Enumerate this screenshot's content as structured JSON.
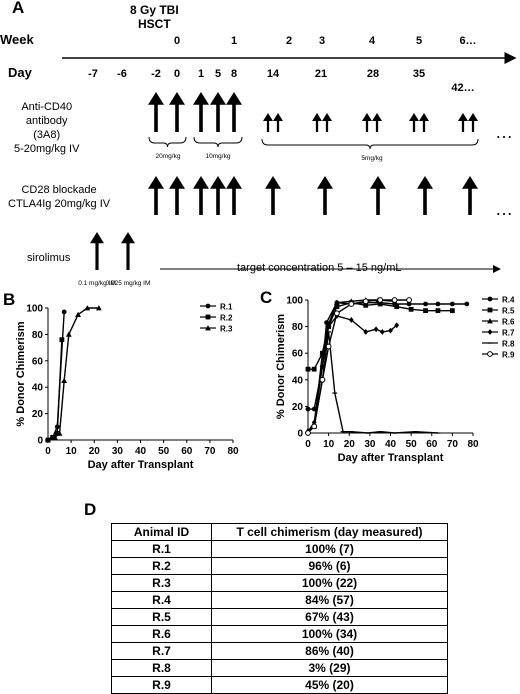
{
  "panel_a": {
    "letter": "A",
    "hsct_label": "8 Gy TBI\nHSCT",
    "week_label": "Week",
    "day_label": "Day",
    "weeks": [
      "0",
      "1",
      "2",
      "3",
      "4",
      "5",
      "6…"
    ],
    "days": [
      "-7",
      "-6",
      "-2",
      "0",
      "1",
      "5",
      "8",
      "14",
      "21",
      "28",
      "35",
      "42…"
    ],
    "anti_cd40": {
      "label": "Anti-CD40\nantibody\n(3A8)\n5-20mg/kg IV",
      "dose_loading": "20mg/kg",
      "dose_week1": "10mg/kg",
      "dose_maintenance": "5mg/kg"
    },
    "cd28": {
      "label": "CD28 blockade\nCTLA4Ig 20mg/kg IV"
    },
    "sirolimus": {
      "label": "sirolimus",
      "dose_1": "0.1 mg/kg IM",
      "dose_2": "0.025 mg/kg IM",
      "target": "target concentration 5 – 15 ng/mL"
    },
    "ellipsis": "…"
  },
  "chart_data": [
    {
      "panel": "B",
      "type": "line",
      "xlabel": "Day after Transplant",
      "ylabel": "% Donor Chimerism",
      "xlim": [
        0,
        80
      ],
      "ylim": [
        0,
        100
      ],
      "xticks": [
        0,
        10,
        20,
        30,
        40,
        50,
        60,
        70,
        80
      ],
      "yticks": [
        0,
        20,
        40,
        60,
        80,
        100
      ],
      "series": [
        {
          "name": "R.1",
          "marker": "circle",
          "points": [
            [
              0,
              0
            ],
            [
              2,
              2
            ],
            [
              4,
              10
            ],
            [
              7,
              97
            ]
          ]
        },
        {
          "name": "R.2",
          "marker": "square",
          "points": [
            [
              0,
              0
            ],
            [
              2,
              2
            ],
            [
              4,
              5
            ],
            [
              6,
              76
            ]
          ]
        },
        {
          "name": "R.3",
          "marker": "triangle",
          "points": [
            [
              0,
              0
            ],
            [
              3,
              2
            ],
            [
              5,
              5
            ],
            [
              7,
              45
            ],
            [
              9,
              80
            ],
            [
              13,
              95
            ],
            [
              17,
              100
            ],
            [
              22,
              100
            ]
          ]
        }
      ]
    },
    {
      "panel": "C",
      "type": "line",
      "xlabel": "Day after Transplant",
      "ylabel": "% Donor Chimerism",
      "xlim": [
        0,
        80
      ],
      "ylim": [
        0,
        100
      ],
      "xticks": [
        0,
        10,
        20,
        30,
        40,
        50,
        60,
        70,
        80
      ],
      "yticks": [
        0,
        20,
        40,
        60,
        80,
        100
      ],
      "series": [
        {
          "name": "R.4",
          "marker": "circle",
          "points": [
            [
              0,
              18
            ],
            [
              3,
              18
            ],
            [
              7,
              50
            ],
            [
              9,
              83
            ],
            [
              14,
              98
            ],
            [
              21,
              97
            ],
            [
              28,
              98
            ],
            [
              35,
              98
            ],
            [
              42,
              97
            ],
            [
              49,
              97
            ],
            [
              57,
              97
            ],
            [
              63,
              97
            ],
            [
              70,
              97
            ],
            [
              77,
              97
            ]
          ]
        },
        {
          "name": "R.5",
          "marker": "square",
          "points": [
            [
              0,
              48
            ],
            [
              3,
              48
            ],
            [
              7,
              60
            ],
            [
              10,
              80
            ],
            [
              14,
              95
            ],
            [
              21,
              98
            ],
            [
              28,
              96
            ],
            [
              35,
              97
            ],
            [
              43,
              95
            ],
            [
              50,
              93
            ],
            [
              57,
              92
            ],
            [
              63,
              92
            ],
            [
              70,
              92
            ]
          ]
        },
        {
          "name": "R.6",
          "marker": "triangle",
          "points": [
            [
              0,
              2
            ],
            [
              3,
              5
            ],
            [
              7,
              60
            ],
            [
              10,
              82
            ],
            [
              14,
              98
            ],
            [
              21,
              99
            ],
            [
              28,
              100
            ],
            [
              34,
              100
            ],
            [
              42,
              99
            ]
          ]
        },
        {
          "name": "R.7",
          "marker": "diamond",
          "points": [
            [
              0,
              1
            ],
            [
              3,
              8
            ],
            [
              7,
              50
            ],
            [
              10,
              80
            ],
            [
              14,
              88
            ],
            [
              21,
              85
            ],
            [
              28,
              76
            ],
            [
              33,
              78
            ],
            [
              36,
              76
            ],
            [
              40,
              77
            ],
            [
              43,
              81
            ]
          ]
        },
        {
          "name": "R.8",
          "marker": "dash",
          "points": [
            [
              0,
              1
            ],
            [
              3,
              5
            ],
            [
              7,
              40
            ],
            [
              10,
              76
            ],
            [
              13,
              30
            ],
            [
              17,
              1
            ],
            [
              21,
              1
            ],
            [
              29,
              0
            ],
            [
              35,
              1
            ],
            [
              42,
              0
            ],
            [
              52,
              1
            ],
            [
              63,
              0
            ]
          ]
        },
        {
          "name": "R.9",
          "marker": "open-circle",
          "points": [
            [
              0,
              0
            ],
            [
              3,
              5
            ],
            [
              7,
              40
            ],
            [
              10,
              65
            ],
            [
              14,
              90
            ],
            [
              21,
              97
            ],
            [
              28,
              99
            ],
            [
              35,
              100
            ],
            [
              42,
              100
            ],
            [
              49,
              100
            ]
          ]
        }
      ]
    }
  ],
  "panel_b_letter": "B",
  "panel_c_letter": "C",
  "panel_d": {
    "letter": "D",
    "headers": [
      "Animal ID",
      "T cell chimerism (day measured)"
    ],
    "rows": [
      [
        "R.1",
        "100% (7)"
      ],
      [
        "R.2",
        "96% (6)"
      ],
      [
        "R.3",
        "100% (22)"
      ],
      [
        "R.4",
        "84% (57)"
      ],
      [
        "R.5",
        "67% (43)"
      ],
      [
        "R.6",
        "100% (34)"
      ],
      [
        "R.7",
        "86% (40)"
      ],
      [
        "R.8",
        "3% (29)"
      ],
      [
        "R.9",
        "45% (20)"
      ]
    ]
  }
}
